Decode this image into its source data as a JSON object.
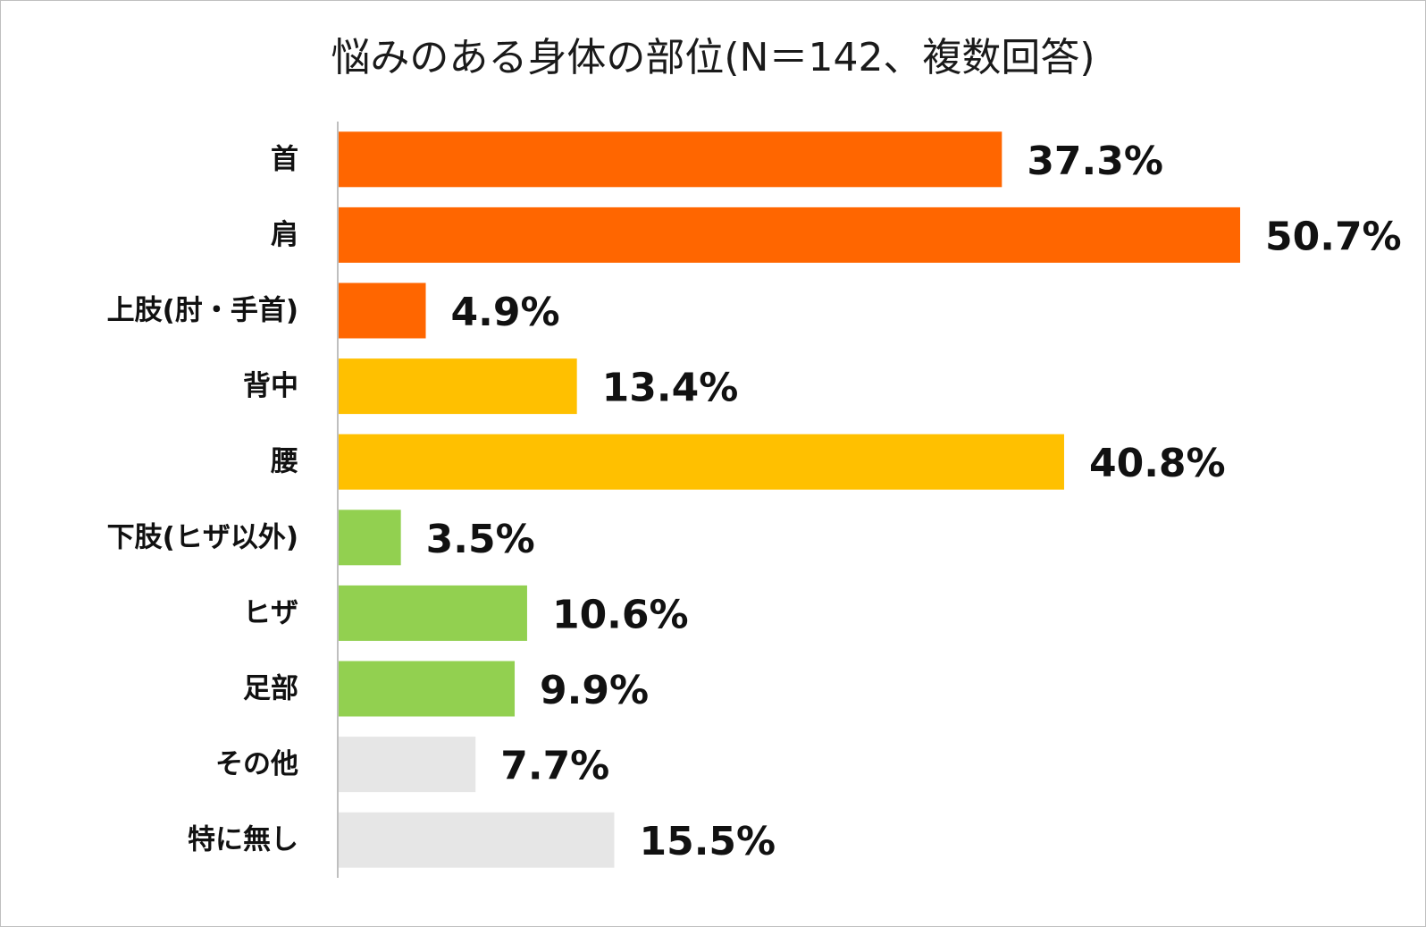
{
  "chart_data": {
    "type": "bar",
    "orientation": "horizontal",
    "title": "悩みのある身体の部位(N＝142、複数回答)",
    "categories": [
      "首",
      "肩",
      "上肢(肘・手首)",
      "背中",
      "腰",
      "下肢(ヒザ以外)",
      "ヒザ",
      "足部",
      "その他",
      "特に無し"
    ],
    "values": [
      37.3,
      50.7,
      4.9,
      13.4,
      40.8,
      3.5,
      10.6,
      9.9,
      7.7,
      15.5
    ],
    "value_labels": [
      "37.3%",
      "50.7%",
      "4.9%",
      "13.4%",
      "40.8%",
      "3.5%",
      "10.6%",
      "9.9%",
      "7.7%",
      "15.5%"
    ],
    "bar_colors": [
      "#FF6600",
      "#FF6600",
      "#FF6600",
      "#FFC000",
      "#FFC000",
      "#92D050",
      "#92D050",
      "#92D050",
      "#E6E6E6",
      "#E6E6E6"
    ],
    "axis_color": "#BFBFBF",
    "xlim": [
      0,
      50.7
    ],
    "grid": false,
    "legend": "none"
  }
}
